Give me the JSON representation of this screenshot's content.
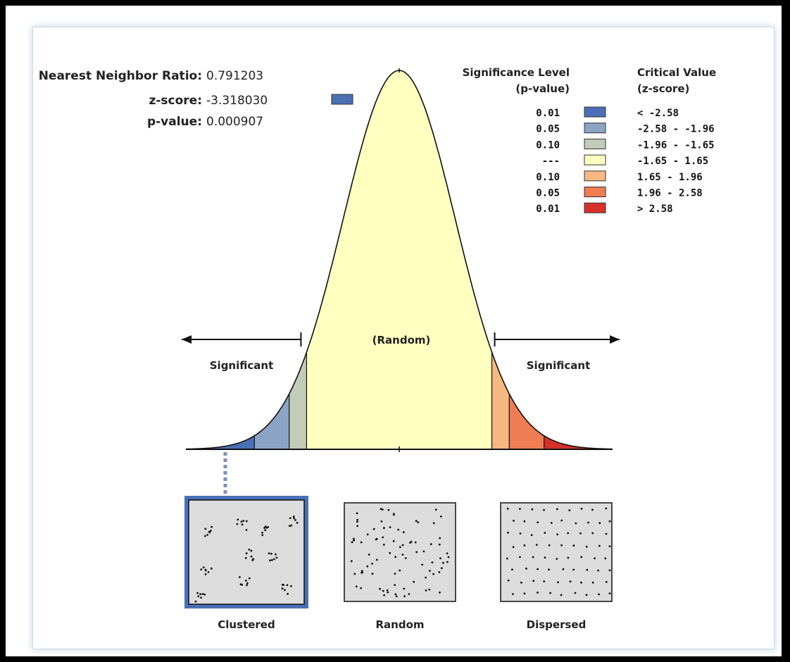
{
  "stats": {
    "ratio_label": "Nearest Neighbor Ratio:",
    "ratio_value": "0.791203",
    "z_label": "z-score:",
    "z_value": "-3.318030",
    "p_label": "p-value:",
    "p_value": "0.000907",
    "z_swatch_color": "#4a6fb5"
  },
  "legend": {
    "sig_title_1": "Significance Level",
    "sig_title_2": "(p-value)",
    "crit_title_1": "Critical Value",
    "crit_title_2": "(z-score)",
    "rows": [
      {
        "p": "0.01",
        "z": "< -2.58",
        "color": "#4a6fb5"
      },
      {
        "p": "0.05",
        "z": "-2.58 - -1.96",
        "color": "#8ca4c4"
      },
      {
        "p": "0.10",
        "z": "-1.96 - -1.65",
        "color": "#c2ccb9"
      },
      {
        "p": "---",
        "z": "-1.65 - 1.65",
        "color": "#ffffc0"
      },
      {
        "p": "0.10",
        "z": "1.65 - 1.96",
        "color": "#f7b882"
      },
      {
        "p": "0.05",
        "z": "1.96 - 2.58",
        "color": "#ef7c52"
      },
      {
        "p": "0.01",
        "z": "> 2.58",
        "color": "#d6302b"
      }
    ]
  },
  "chart_data": {
    "type": "area",
    "x_range": [
      -3.8,
      3.8
    ],
    "curve": "standard normal distribution",
    "critical_values": [
      -2.58,
      -1.96,
      -1.65,
      1.65,
      1.96,
      2.58
    ],
    "observed_z": -3.31803,
    "region_labels": {
      "left": "Significant",
      "center": "(Random)",
      "right": "Significant"
    }
  },
  "patterns": [
    {
      "label": "Clustered",
      "selected": true
    },
    {
      "label": "Random",
      "selected": false
    },
    {
      "label": "Dispersed",
      "selected": false
    }
  ]
}
